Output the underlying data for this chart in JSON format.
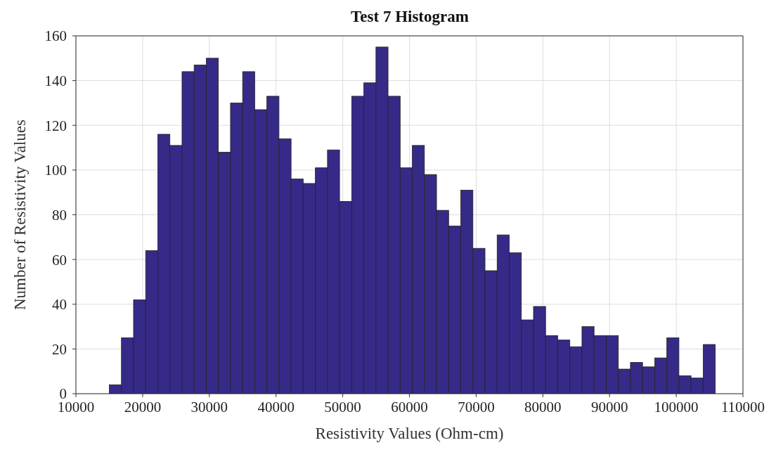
{
  "chart_data": {
    "type": "histogram",
    "title": "Test 7 Histogram",
    "xlabel": "Resistivity Values (Ohm-cm)",
    "ylabel": "Number of Resistivity Values",
    "bins": [
      15000,
      16815,
      18630,
      20445,
      22260,
      24075,
      25890,
      27705,
      29520,
      31335,
      33150,
      34965,
      36780,
      38595,
      40410,
      42225,
      44040,
      45855,
      47670,
      49485,
      51300,
      53115,
      54930,
      56745,
      58560,
      60375,
      62190,
      64005,
      65820,
      67635,
      69450,
      71265,
      73080,
      74895,
      76710,
      78525,
      80340,
      82155,
      83970,
      85785,
      87600,
      89415,
      91230,
      93045,
      94860,
      96675,
      98490,
      100305,
      102120,
      103935,
      105750
    ],
    "values": [
      4,
      25,
      42,
      64,
      116,
      111,
      144,
      147,
      150,
      108,
      130,
      144,
      127,
      133,
      114,
      96,
      94,
      101,
      109,
      86,
      133,
      139,
      155,
      133,
      101,
      111,
      98,
      82,
      75,
      91,
      65,
      55,
      71,
      63,
      33,
      39,
      26,
      24,
      21,
      30,
      26,
      26,
      11,
      14,
      12,
      16,
      25,
      8,
      7,
      22
    ],
    "color": "#352a87",
    "xlim": [
      10000,
      110000
    ],
    "xticks": [
      10000,
      20000,
      30000,
      40000,
      50000,
      60000,
      70000,
      80000,
      90000,
      100000,
      110000
    ],
    "ylim": [
      0,
      160
    ],
    "yticks": [
      0,
      20,
      40,
      60,
      80,
      100,
      120,
      140,
      160
    ],
    "grid": true
  }
}
